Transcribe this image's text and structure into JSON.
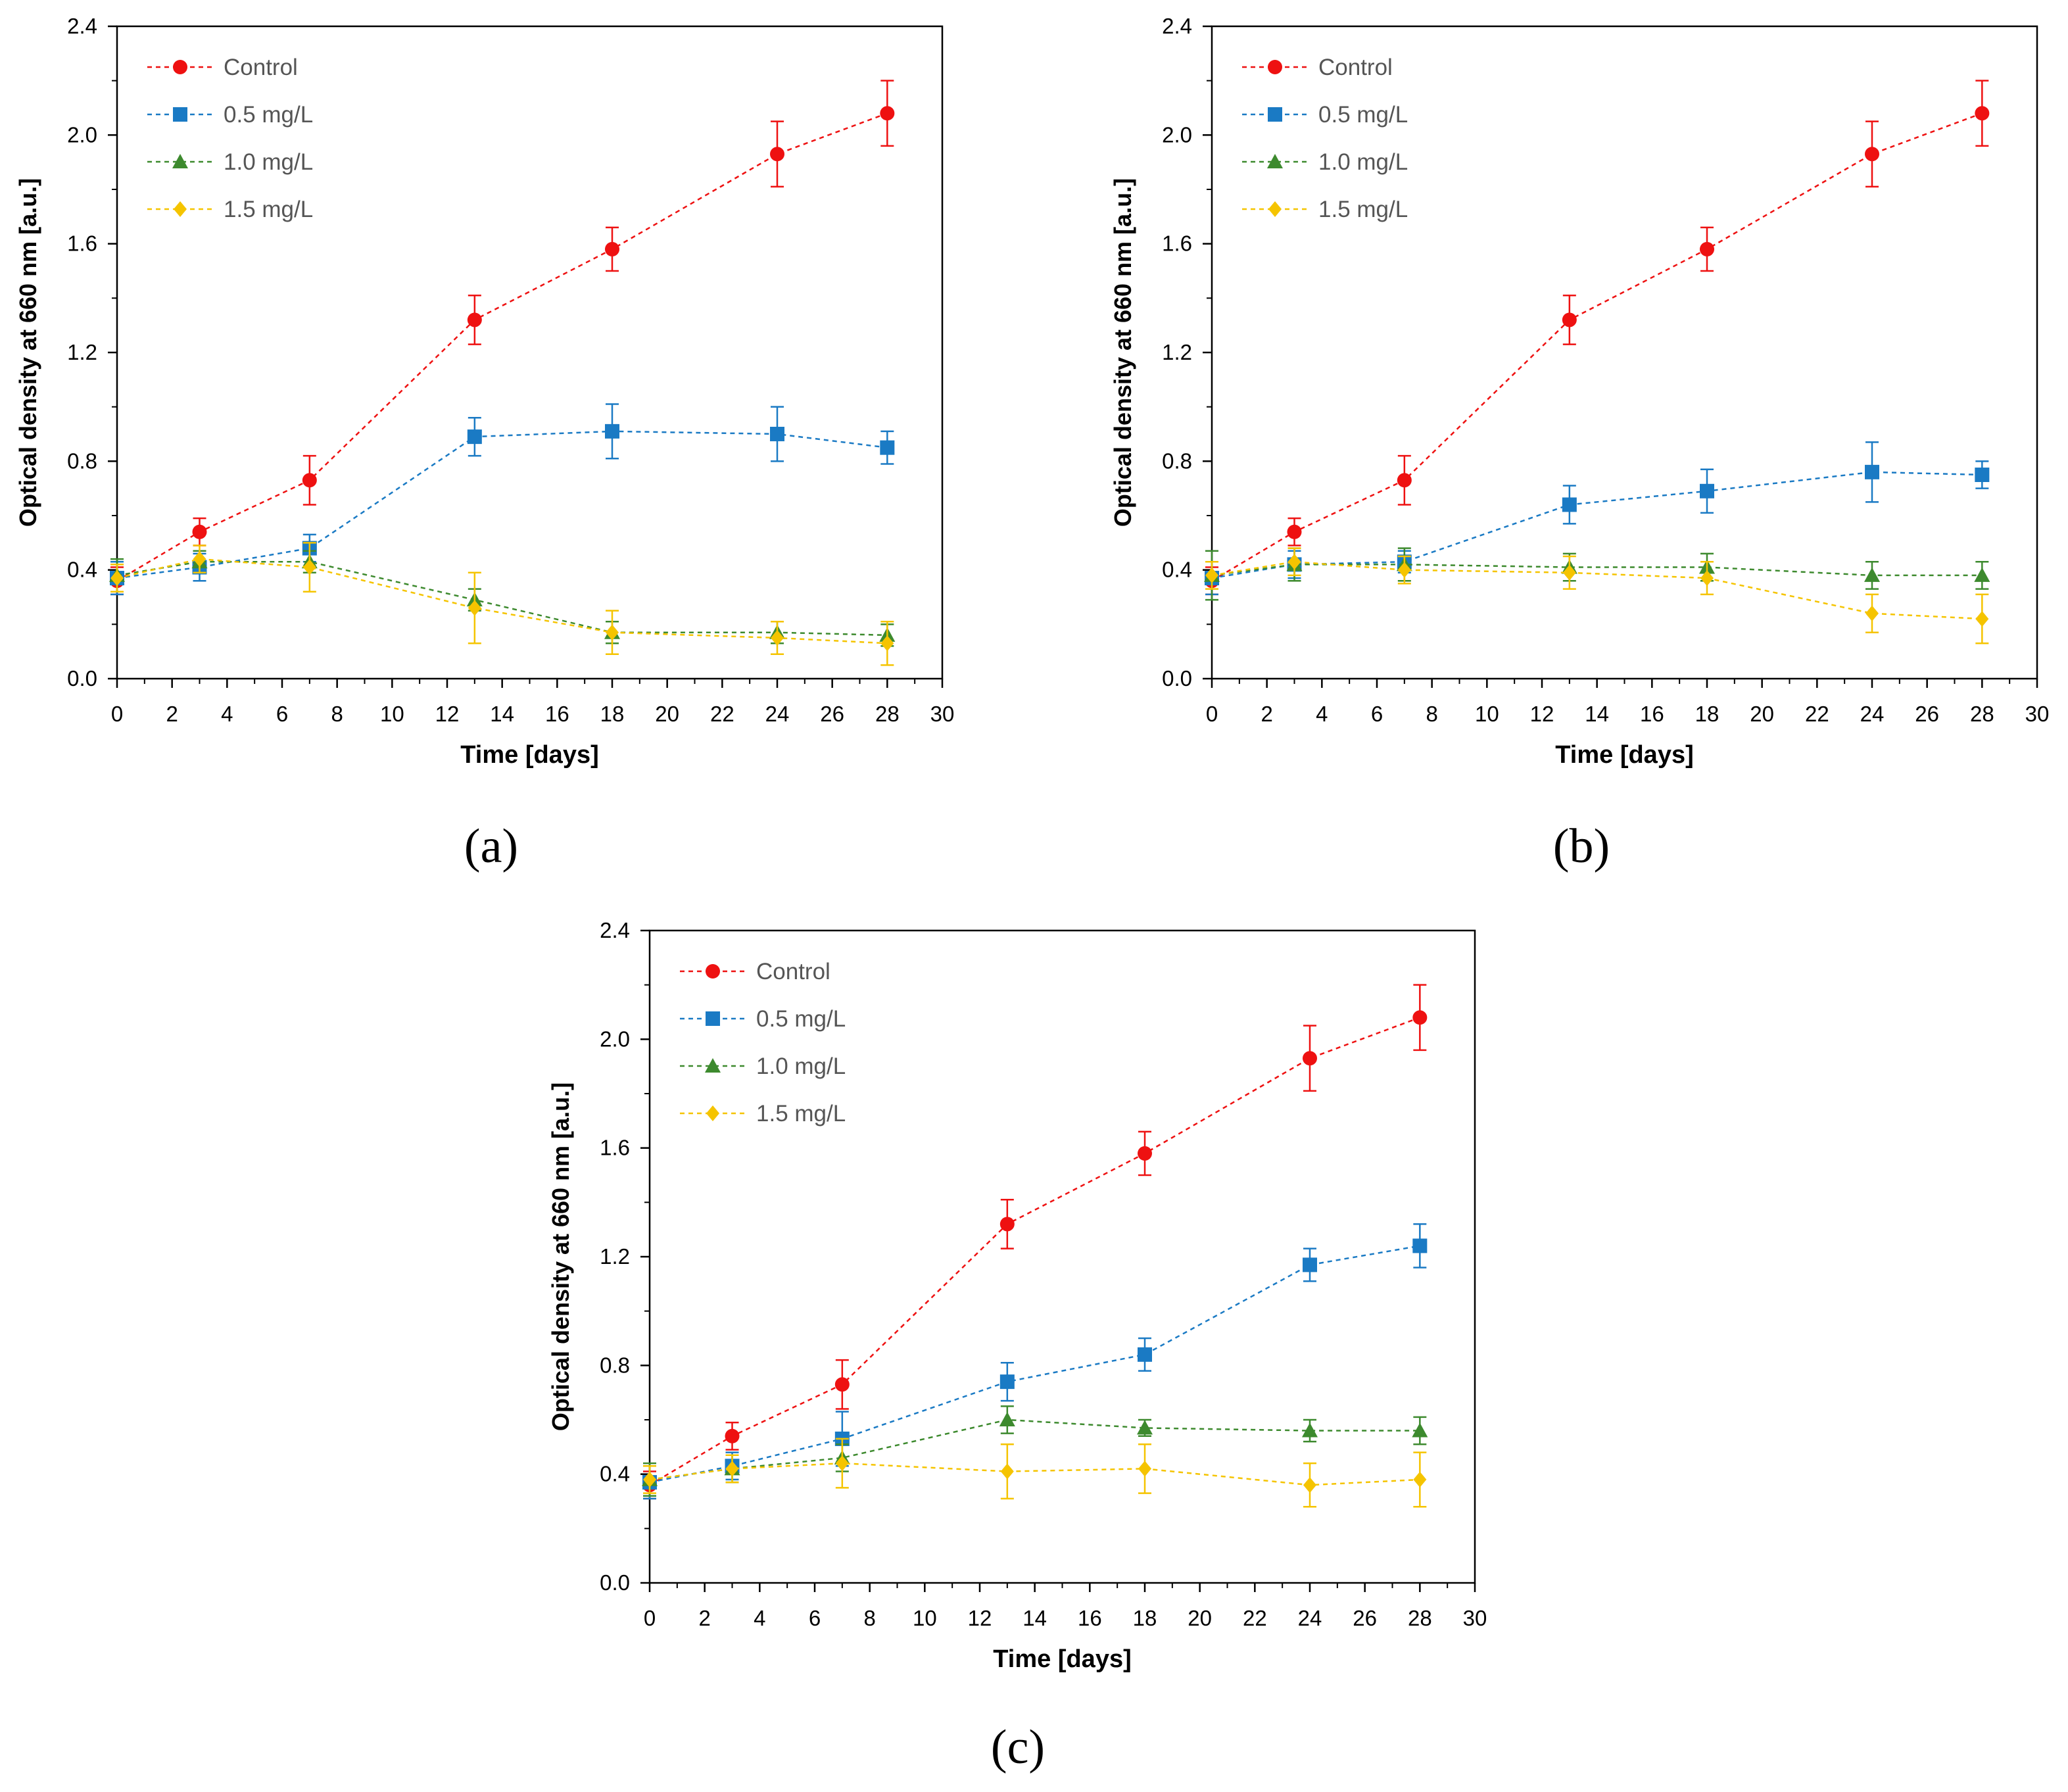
{
  "panel_labels": [
    "(a)",
    "(b)",
    "(c)"
  ],
  "colors": {
    "control": "#ee1111",
    "half": "#1a7ac4",
    "one": "#3d8a2e",
    "onehalf": "#f5c400"
  },
  "chart_data": [
    {
      "type": "line",
      "panel": "(a)",
      "xlabel": "Time [days]",
      "ylabel": "Optical density at 660 nm [a.u.]",
      "xlim": [
        0,
        30
      ],
      "ylim": [
        0,
        2.4
      ],
      "xticks": [
        "0",
        "2",
        "4",
        "6",
        "8",
        "10",
        "12",
        "14",
        "16",
        "18",
        "20",
        "22",
        "24",
        "26",
        "28",
        "30"
      ],
      "yticks": [
        "0.0",
        "0.4",
        "0.8",
        "1.2",
        "1.6",
        "2.0",
        "2.4"
      ],
      "legend_position": "top-left",
      "series": [
        {
          "name": "Control",
          "marker": "circle",
          "color": "#ee1111",
          "x": [
            0,
            3,
            7,
            13,
            18,
            24,
            28
          ],
          "y": [
            0.36,
            0.54,
            0.73,
            1.32,
            1.58,
            1.93,
            2.08
          ],
          "err": [
            0.05,
            0.05,
            0.09,
            0.09,
            0.08,
            0.12,
            0.12
          ]
        },
        {
          "name": "0.5 mg/L",
          "marker": "square",
          "color": "#1a7ac4",
          "x": [
            0,
            3,
            7,
            13,
            18,
            24,
            28
          ],
          "y": [
            0.37,
            0.41,
            0.48,
            0.89,
            0.91,
            0.9,
            0.85
          ],
          "err": [
            0.06,
            0.05,
            0.05,
            0.07,
            0.1,
            0.1,
            0.06
          ]
        },
        {
          "name": "1.0 mg/L",
          "marker": "triangle",
          "color": "#3d8a2e",
          "x": [
            0,
            3,
            7,
            13,
            18,
            24,
            28
          ],
          "y": [
            0.38,
            0.43,
            0.43,
            0.29,
            0.17,
            0.17,
            0.16
          ],
          "err": [
            0.06,
            0.04,
            0.04,
            0.04,
            0.04,
            0.04,
            0.04
          ]
        },
        {
          "name": "1.5 mg/L",
          "marker": "diamond",
          "color": "#f5c400",
          "x": [
            0,
            3,
            7,
            13,
            18,
            24,
            28
          ],
          "y": [
            0.37,
            0.44,
            0.41,
            0.26,
            0.17,
            0.15,
            0.13
          ],
          "err": [
            0.05,
            0.05,
            0.09,
            0.13,
            0.08,
            0.06,
            0.08
          ]
        }
      ]
    },
    {
      "type": "line",
      "panel": "(b)",
      "xlabel": "Time [days]",
      "ylabel": "Optical density at 660 nm [a.u.]",
      "xlim": [
        0,
        30
      ],
      "ylim": [
        0,
        2.4
      ],
      "xticks": [
        "0",
        "2",
        "4",
        "6",
        "8",
        "10",
        "12",
        "14",
        "16",
        "18",
        "20",
        "22",
        "24",
        "26",
        "28",
        "30"
      ],
      "yticks": [
        "0.0",
        "0.4",
        "0.8",
        "1.2",
        "1.6",
        "2.0",
        "2.4"
      ],
      "legend_position": "top-left",
      "series": [
        {
          "name": "Control",
          "marker": "circle",
          "color": "#ee1111",
          "x": [
            0,
            3,
            7,
            13,
            18,
            24,
            28
          ],
          "y": [
            0.36,
            0.54,
            0.73,
            1.32,
            1.58,
            1.93,
            2.08
          ],
          "err": [
            0.05,
            0.05,
            0.09,
            0.09,
            0.08,
            0.12,
            0.12
          ]
        },
        {
          "name": "0.5 mg/L",
          "marker": "square",
          "color": "#1a7ac4",
          "x": [
            0,
            3,
            7,
            13,
            18,
            24,
            28
          ],
          "y": [
            0.37,
            0.42,
            0.43,
            0.64,
            0.69,
            0.76,
            0.75
          ],
          "err": [
            0.06,
            0.05,
            0.04,
            0.07,
            0.08,
            0.11,
            0.05
          ]
        },
        {
          "name": "1.0 mg/L",
          "marker": "triangle",
          "color": "#3d8a2e",
          "x": [
            0,
            3,
            7,
            13,
            18,
            24,
            28
          ],
          "y": [
            0.38,
            0.42,
            0.42,
            0.41,
            0.41,
            0.38,
            0.38
          ],
          "err": [
            0.09,
            0.06,
            0.06,
            0.05,
            0.05,
            0.05,
            0.05
          ]
        },
        {
          "name": "1.5 mg/L",
          "marker": "diamond",
          "color": "#f5c400",
          "x": [
            0,
            3,
            7,
            13,
            18,
            24,
            28
          ],
          "y": [
            0.38,
            0.43,
            0.4,
            0.39,
            0.37,
            0.24,
            0.22
          ],
          "err": [
            0.05,
            0.05,
            0.05,
            0.06,
            0.06,
            0.07,
            0.09
          ]
        }
      ]
    },
    {
      "type": "line",
      "panel": "(c)",
      "xlabel": "Time [days]",
      "ylabel": "Optical density at 660 nm [a.u.]",
      "xlim": [
        0,
        30
      ],
      "ylim": [
        0,
        2.4
      ],
      "xticks": [
        "0",
        "2",
        "4",
        "6",
        "8",
        "10",
        "12",
        "14",
        "16",
        "18",
        "20",
        "22",
        "24",
        "26",
        "28",
        "30"
      ],
      "yticks": [
        "0.0",
        "0.4",
        "0.8",
        "1.2",
        "1.6",
        "2.0",
        "2.4"
      ],
      "legend_position": "top-left",
      "series": [
        {
          "name": "Control",
          "marker": "circle",
          "color": "#ee1111",
          "x": [
            0,
            3,
            7,
            13,
            18,
            24,
            28
          ],
          "y": [
            0.36,
            0.54,
            0.73,
            1.32,
            1.58,
            1.93,
            2.08
          ],
          "err": [
            0.05,
            0.05,
            0.09,
            0.09,
            0.08,
            0.12,
            0.12
          ]
        },
        {
          "name": "0.5 mg/L",
          "marker": "square",
          "color": "#1a7ac4",
          "x": [
            0,
            3,
            7,
            13,
            18,
            24,
            28
          ],
          "y": [
            0.37,
            0.43,
            0.53,
            0.74,
            0.84,
            1.17,
            1.24
          ],
          "err": [
            0.06,
            0.05,
            0.1,
            0.07,
            0.06,
            0.06,
            0.08
          ]
        },
        {
          "name": "1.0 mg/L",
          "marker": "triangle",
          "color": "#3d8a2e",
          "x": [
            0,
            3,
            7,
            13,
            18,
            24,
            28
          ],
          "y": [
            0.38,
            0.42,
            0.46,
            0.6,
            0.57,
            0.56,
            0.56
          ],
          "err": [
            0.06,
            0.05,
            0.05,
            0.05,
            0.03,
            0.04,
            0.05
          ]
        },
        {
          "name": "1.5 mg/L",
          "marker": "diamond",
          "color": "#f5c400",
          "x": [
            0,
            3,
            7,
            13,
            18,
            24,
            28
          ],
          "y": [
            0.38,
            0.42,
            0.44,
            0.41,
            0.42,
            0.36,
            0.38
          ],
          "err": [
            0.05,
            0.05,
            0.09,
            0.1,
            0.09,
            0.08,
            0.1
          ]
        }
      ]
    }
  ]
}
